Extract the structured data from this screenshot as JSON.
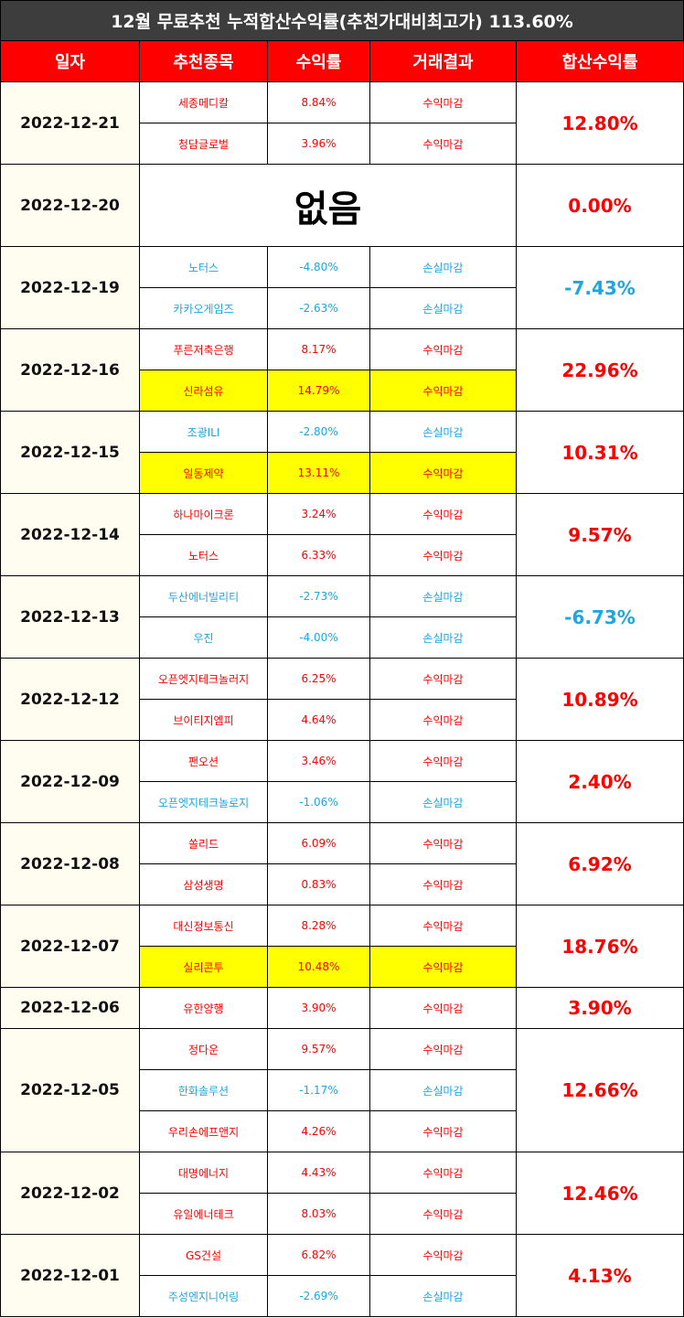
{
  "title": "12월 무료추천 누적합산수익률(추천가대비최고가) 113.60%",
  "header": [
    "일자",
    "추천종목",
    "수익률",
    "거래결과",
    "합산수익률"
  ],
  "groups": [
    {
      "date": "2022-12-21",
      "total": "12.80%",
      "stocks": [
        {
          "name": "세종메디칼",
          "return": "8.84%",
          "result": "수익마감",
          "highlight": false
        },
        {
          "name": "청담글로벌",
          "return": "3.96%",
          "result": "수익마감",
          "highlight": false
        }
      ]
    },
    {
      "date": "2022-12-20",
      "total": "0.00%",
      "note": "없음",
      "stocks": []
    },
    {
      "date": "2022-12-19",
      "total": "-7.43%",
      "stocks": [
        {
          "name": "노터스",
          "return": "-4.80%",
          "result": "손실마감",
          "highlight": false
        },
        {
          "name": "카카오게임즈",
          "return": "-2.63%",
          "result": "손실마감",
          "highlight": false
        }
      ]
    },
    {
      "date": "2022-12-16",
      "total": "22.96%",
      "stocks": [
        {
          "name": "푸른저축은행",
          "return": "8.17%",
          "result": "수익마감",
          "highlight": false
        },
        {
          "name": "신라섬유",
          "return": "14.79%",
          "result": "수익마감",
          "highlight": true
        }
      ]
    },
    {
      "date": "2022-12-15",
      "total": "10.31%",
      "stocks": [
        {
          "name": "조광ILI",
          "return": "-2.80%",
          "result": "손실마감",
          "highlight": false
        },
        {
          "name": "일동제약",
          "return": "13.11%",
          "result": "수익마감",
          "highlight": true
        }
      ]
    },
    {
      "date": "2022-12-14",
      "total": "9.57%",
      "stocks": [
        {
          "name": "하나마이크론",
          "return": "3.24%",
          "result": "수익마감",
          "highlight": false
        },
        {
          "name": "노터스",
          "return": "6.33%",
          "result": "수익마감",
          "highlight": false
        }
      ]
    },
    {
      "date": "2022-12-13",
      "total": "-6.73%",
      "stocks": [
        {
          "name": "두산에너빌리티",
          "return": "-2.73%",
          "result": "손실마감",
          "highlight": false
        },
        {
          "name": "우진",
          "return": "-4.00%",
          "result": "손실마감",
          "highlight": false
        }
      ]
    },
    {
      "date": "2022-12-12",
      "total": "10.89%",
      "stocks": [
        {
          "name": "오픈엣지테크놀러지",
          "return": "6.25%",
          "result": "수익마감",
          "highlight": false
        },
        {
          "name": "브이티지엠피",
          "return": "4.64%",
          "result": "수익마감",
          "highlight": false
        }
      ]
    },
    {
      "date": "2022-12-09",
      "total": "2.40%",
      "stocks": [
        {
          "name": "팬오션",
          "return": "3.46%",
          "result": "수익마감",
          "highlight": false
        },
        {
          "name": "오픈엣지테크놀로지",
          "return": "-1.06%",
          "result": "손실마감",
          "highlight": false
        }
      ]
    },
    {
      "date": "2022-12-08",
      "total": "6.92%",
      "stocks": [
        {
          "name": "쏠리드",
          "return": "6.09%",
          "result": "수익마감",
          "highlight": false
        },
        {
          "name": "삼성생명",
          "return": "0.83%",
          "result": "수익마감",
          "highlight": false
        }
      ]
    },
    {
      "date": "2022-12-07",
      "total": "18.76%",
      "stocks": [
        {
          "name": "대신정보통신",
          "return": "8.28%",
          "result": "수익마감",
          "highlight": false
        },
        {
          "name": "실리콘투",
          "return": "10.48%",
          "result": "수익마감",
          "highlight": true
        }
      ]
    },
    {
      "date": "2022-12-06",
      "total": "3.90%",
      "stocks": [
        {
          "name": "유한양행",
          "return": "3.90%",
          "result": "수익마감",
          "highlight": false
        }
      ]
    },
    {
      "date": "2022-12-05",
      "total": "12.66%",
      "stocks": [
        {
          "name": "정다운",
          "return": "9.57%",
          "result": "수익마감",
          "highlight": false
        },
        {
          "name": "한화솔루션",
          "return": "-1.17%",
          "result": "손실마감",
          "highlight": false
        },
        {
          "name": "우리손에프앤지",
          "return": "4.26%",
          "result": "수익마감",
          "highlight": false
        }
      ]
    },
    {
      "date": "2022-12-02",
      "total": "12.46%",
      "stocks": [
        {
          "name": "대명에너지",
          "return": "4.43%",
          "result": "수익마감",
          "highlight": false
        },
        {
          "name": "유일에너테크",
          "return": "8.03%",
          "result": "수익마감",
          "highlight": false
        }
      ]
    },
    {
      "date": "2022-12-01",
      "total": "4.13%",
      "stocks": [
        {
          "name": "GS건설",
          "return": "6.82%",
          "result": "수익마감",
          "highlight": false
        },
        {
          "name": "주성엔지니어링",
          "return": "-2.69%",
          "result": "손실마감",
          "highlight": false
        }
      ]
    }
  ]
}
